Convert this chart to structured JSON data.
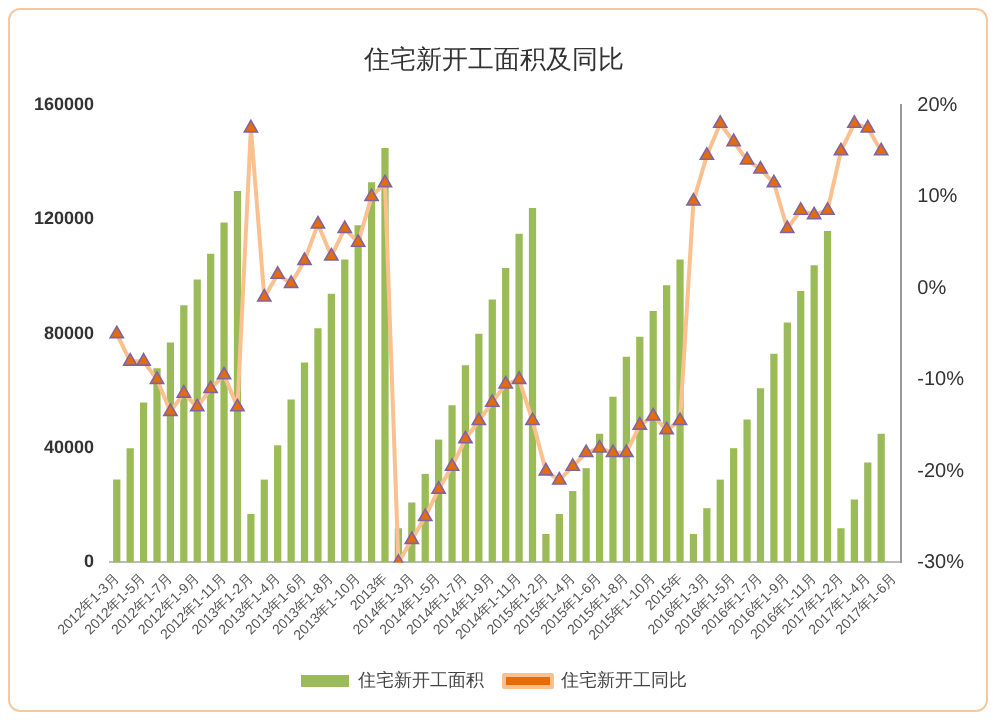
{
  "chart_data": {
    "type": "bar",
    "title": "住宅新开工面积及同比",
    "categories": [
      "2012年1-3月",
      null,
      "2012年1-5月",
      null,
      "2012年1-7月",
      null,
      "2012年1-9月",
      null,
      "2012年1-11月",
      null,
      "2013年1-2月",
      null,
      "2013年1-4月",
      null,
      "2013年1-6月",
      null,
      "2013年1-8月",
      null,
      "2013年1-10月",
      null,
      "2013年",
      null,
      "2014年1-3月",
      null,
      "2014年1-5月",
      null,
      "2014年1-7月",
      null,
      "2014年1-9月",
      null,
      "2014年1-11月",
      null,
      "2015年1-2月",
      null,
      "2015年1-4月",
      null,
      "2015年1-6月",
      null,
      "2015年1-8月",
      null,
      "2015年1-10月",
      null,
      "2015年",
      null,
      "2016年1-3月",
      null,
      "2016年1-5月",
      null,
      "2016年1-7月",
      null,
      "2016年1-9月",
      null,
      "2016年1-11月",
      null,
      "2017年1-2月",
      null,
      "2017年1-4月",
      null,
      "2017年1-6月"
    ],
    "series": [
      {
        "name": "住宅新开工面积",
        "color": "#9bbb59",
        "values": [
          29000,
          40000,
          56000,
          68000,
          77000,
          90000,
          99000,
          108000,
          119000,
          130000,
          17000,
          29000,
          41000,
          57000,
          70000,
          82000,
          94000,
          106000,
          118000,
          133000,
          145000,
          12000,
          21000,
          31000,
          43000,
          55000,
          69000,
          80000,
          92000,
          103000,
          115000,
          124000,
          10000,
          17000,
          25000,
          33000,
          45000,
          58000,
          72000,
          79000,
          88000,
          97000,
          106000,
          10000,
          19000,
          29000,
          40000,
          50000,
          61000,
          73000,
          84000,
          95000,
          104000,
          116000,
          12000,
          22000,
          35000,
          45000,
          null
        ]
      },
      {
        "name": "住宅新开工同比",
        "type": "line",
        "axis": "y2",
        "color": "#e46c0a",
        "values": [
          -5,
          -8,
          -8,
          -10,
          -13.5,
          -11.5,
          -13,
          -11,
          -9.5,
          -13,
          17.5,
          -1,
          1.5,
          0.5,
          3,
          7,
          3.5,
          6.5,
          5,
          10,
          11.5,
          -30,
          -27.5,
          -25,
          -22,
          -19.5,
          -16.5,
          -14.5,
          -12.5,
          -10.5,
          -10,
          -14.5,
          -20,
          -21,
          -19.5,
          -18,
          -17.5,
          -18,
          -18,
          -15,
          -14,
          -15.5,
          -14.5,
          9.5,
          14.5,
          18,
          16,
          14,
          13,
          11.5,
          6.5,
          8.5,
          8,
          8.5,
          15,
          18,
          17.5,
          15,
          null
        ]
      }
    ],
    "ylim": [
      0,
      160000
    ],
    "yticks": [
      0,
      40000,
      80000,
      120000,
      160000
    ],
    "y2lim": [
      -30,
      20
    ],
    "y2ticks": [
      {
        "value": -30,
        "label": "-30%"
      },
      {
        "value": -20,
        "label": "-20%"
      },
      {
        "value": -10,
        "label": "-10%"
      },
      {
        "value": 0,
        "label": "0%"
      },
      {
        "value": 10,
        "label": "10%"
      },
      {
        "value": 20,
        "label": "20%"
      }
    ],
    "marker": "triangle",
    "legend": "bottom",
    "grid": false
  }
}
